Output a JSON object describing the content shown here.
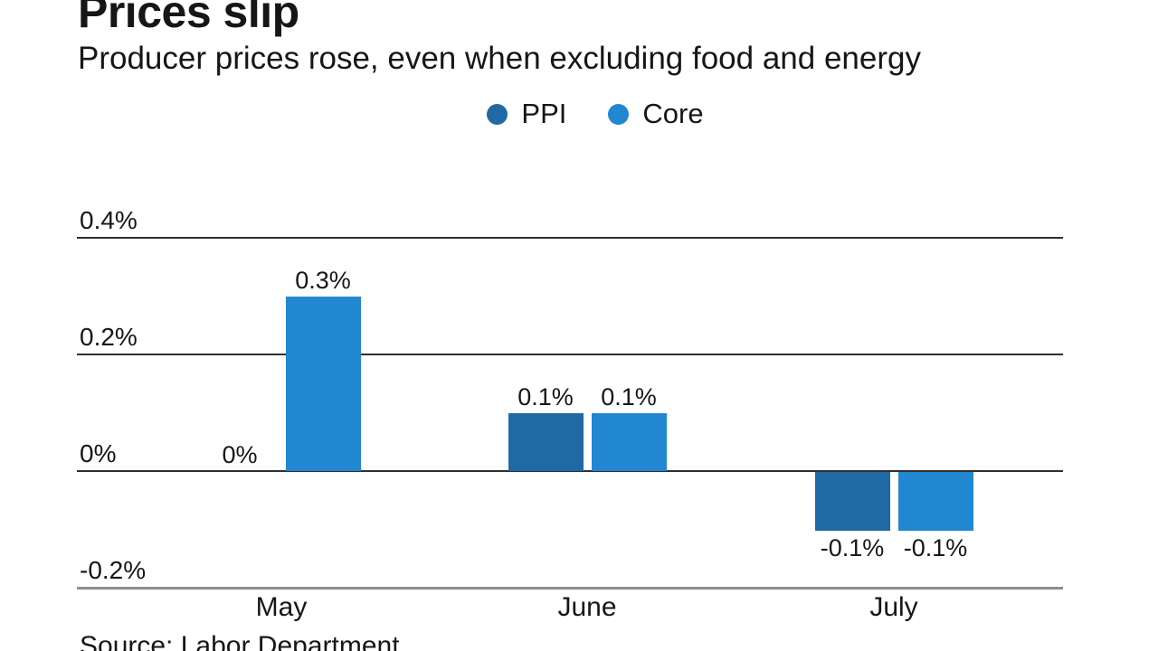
{
  "header": {
    "title": "Prices slip",
    "subtitle": "Producer prices rose, even when excluding food and energy"
  },
  "source_note": "Source: Labor Department",
  "chart_data": {
    "type": "bar",
    "title": "Prices slip",
    "subtitle": "Producer prices rose, even when excluding food and energy",
    "categories": [
      "May",
      "June",
      "July"
    ],
    "series": [
      {
        "name": "PPI",
        "color": "#1f6aa5",
        "values": [
          0,
          0.1,
          -0.1
        ],
        "labels": [
          "0%",
          "0.1%",
          "-0.1%"
        ]
      },
      {
        "name": "Core",
        "color": "#2287d1",
        "values": [
          0.3,
          0.1,
          -0.1
        ],
        "labels": [
          "0.3%",
          "0.1%",
          "-0.1%"
        ]
      }
    ],
    "y_ticks": [
      {
        "value": 0.4,
        "label": "0.4%"
      },
      {
        "value": 0.2,
        "label": "0.2%"
      },
      {
        "value": 0,
        "label": "0%"
      },
      {
        "value": -0.2,
        "label": "-0.2%"
      }
    ],
    "ylim": [
      -0.2,
      0.4
    ],
    "unit": "percent",
    "grid": "horizontal",
    "legend_position": "top-center",
    "source": "Source: Labor Department"
  }
}
